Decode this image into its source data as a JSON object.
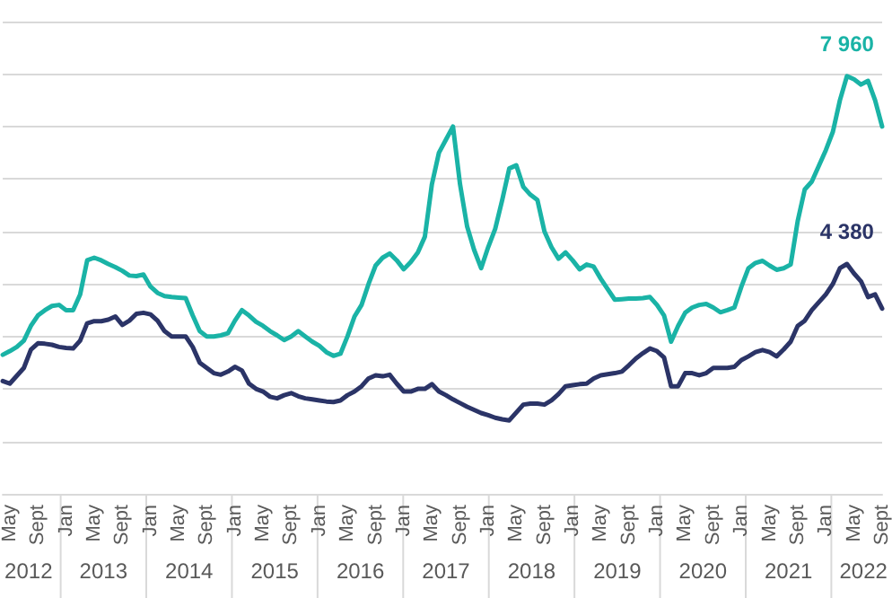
{
  "chart_data": {
    "type": "line",
    "categories": [
      null,
      "May",
      null,
      null,
      null,
      "Sept",
      null,
      null,
      null,
      "Jan",
      null,
      null,
      null,
      "May",
      null,
      null,
      null,
      "Sept",
      null,
      null,
      null,
      "Jan",
      null,
      null,
      null,
      "May",
      null,
      null,
      null,
      "Sept",
      null,
      null,
      null,
      "Jan",
      null,
      null,
      null,
      "May",
      null,
      null,
      null,
      "Sept",
      null,
      null,
      null,
      "Jan",
      null,
      null,
      null,
      "May",
      null,
      null,
      null,
      "Sept",
      null,
      null,
      null,
      "Jan",
      null,
      null,
      null,
      "May",
      null,
      null,
      null,
      "Sept",
      null,
      null,
      null,
      "Jan",
      null,
      null,
      null,
      "May",
      null,
      null,
      null,
      "Sept",
      null,
      null,
      null,
      "Jan",
      null,
      null,
      null,
      "May",
      null,
      null,
      null,
      "Sept",
      null,
      null,
      null,
      "Jan",
      null,
      null,
      null,
      "May",
      null,
      null,
      null,
      "Sept",
      null,
      null,
      null,
      "Jan",
      null,
      null,
      null,
      "May",
      null,
      null,
      null,
      "Sept",
      null,
      null,
      null,
      "Jan",
      null,
      null,
      null,
      "May",
      null,
      null,
      null,
      "Sept"
    ],
    "series": [
      {
        "color": "#1ab3a6",
        "values": [
          2650,
          2720,
          2800,
          2920,
          3200,
          3400,
          3500,
          3580,
          3600,
          3500,
          3500,
          3800,
          4450,
          4500,
          4450,
          4380,
          4320,
          4250,
          4160,
          4150,
          4180,
          3950,
          3830,
          3770,
          3750,
          3740,
          3730,
          3400,
          3100,
          3000,
          3000,
          3020,
          3060,
          3300,
          3500,
          3400,
          3280,
          3200,
          3100,
          3020,
          2930,
          3000,
          3100,
          3000,
          2900,
          2820,
          2700,
          2630,
          2670,
          3000,
          3380,
          3600,
          4000,
          4350,
          4500,
          4580,
          4450,
          4280,
          4420,
          4600,
          4900,
          5900,
          6500,
          6750,
          7000,
          5900,
          5100,
          4650,
          4300,
          4700,
          5050,
          5600,
          6200,
          6260,
          5850,
          5700,
          5600,
          5000,
          4700,
          4480,
          4600,
          4450,
          4280,
          4370,
          4330,
          4100,
          3900,
          3700,
          3710,
          3720,
          3720,
          3730,
          3750,
          3600,
          3400,
          2900,
          3200,
          3450,
          3550,
          3600,
          3620,
          3550,
          3460,
          3500,
          3550,
          3950,
          4300,
          4400,
          4440,
          4350,
          4270,
          4300,
          4370,
          5200,
          5800,
          5950,
          6250,
          6550,
          6900,
          7500,
          7960,
          7900,
          7800,
          7870,
          7500,
          7000
        ],
        "value_labels": [
          null,
          null,
          null,
          null,
          null,
          null,
          null,
          null,
          null,
          null,
          null,
          null,
          null,
          null,
          null,
          null,
          null,
          null,
          null,
          null,
          null,
          null,
          null,
          null,
          null,
          null,
          null,
          null,
          null,
          null,
          null,
          null,
          null,
          null,
          null,
          null,
          null,
          null,
          null,
          null,
          null,
          null,
          null,
          null,
          null,
          null,
          null,
          null,
          null,
          null,
          null,
          null,
          null,
          null,
          null,
          null,
          null,
          null,
          null,
          null,
          null,
          null,
          null,
          null,
          null,
          null,
          null,
          null,
          null,
          null,
          null,
          null,
          null,
          null,
          null,
          null,
          null,
          null,
          null,
          null,
          null,
          null,
          null,
          null,
          null,
          null,
          null,
          null,
          null,
          null,
          null,
          null,
          null,
          null,
          null,
          null,
          null,
          null,
          null,
          null,
          null,
          null,
          null,
          null,
          null,
          null,
          null,
          null,
          null,
          null,
          null,
          null,
          null,
          null,
          null,
          null,
          null,
          null,
          null,
          null,
          "7 960",
          null,
          null,
          null,
          null,
          null
        ]
      },
      {
        "color": "#2b3467",
        "values": [
          2150,
          2100,
          2250,
          2400,
          2750,
          2870,
          2860,
          2840,
          2800,
          2780,
          2770,
          2920,
          3250,
          3290,
          3290,
          3320,
          3380,
          3220,
          3300,
          3430,
          3450,
          3420,
          3300,
          3100,
          3000,
          3000,
          3000,
          2800,
          2500,
          2400,
          2300,
          2270,
          2330,
          2420,
          2350,
          2100,
          2000,
          1950,
          1850,
          1820,
          1880,
          1920,
          1860,
          1820,
          1800,
          1780,
          1760,
          1750,
          1780,
          1880,
          1950,
          2050,
          2200,
          2260,
          2240,
          2270,
          2100,
          1950,
          1950,
          2000,
          2000,
          2090,
          1950,
          1880,
          1800,
          1730,
          1660,
          1600,
          1540,
          1500,
          1450,
          1420,
          1400,
          1550,
          1700,
          1720,
          1720,
          1700,
          1780,
          1900,
          2050,
          2070,
          2090,
          2100,
          2200,
          2260,
          2280,
          2300,
          2330,
          2450,
          2580,
          2680,
          2770,
          2720,
          2600,
          2050,
          2050,
          2300,
          2300,
          2260,
          2300,
          2400,
          2400,
          2400,
          2420,
          2550,
          2620,
          2700,
          2740,
          2700,
          2620,
          2750,
          2900,
          3200,
          3300,
          3500,
          3650,
          3800,
          4000,
          4300,
          4380,
          4200,
          4050,
          3750,
          3800,
          3530
        ],
        "value_labels": [
          null,
          null,
          null,
          null,
          null,
          null,
          null,
          null,
          null,
          null,
          null,
          null,
          null,
          null,
          null,
          null,
          null,
          null,
          null,
          null,
          null,
          null,
          null,
          null,
          null,
          null,
          null,
          null,
          null,
          null,
          null,
          null,
          null,
          null,
          null,
          null,
          null,
          null,
          null,
          null,
          null,
          null,
          null,
          null,
          null,
          null,
          null,
          null,
          null,
          null,
          null,
          null,
          null,
          null,
          null,
          null,
          null,
          null,
          null,
          null,
          null,
          null,
          null,
          null,
          null,
          null,
          null,
          null,
          null,
          null,
          null,
          null,
          null,
          null,
          null,
          null,
          null,
          null,
          null,
          null,
          null,
          null,
          null,
          null,
          null,
          null,
          null,
          null,
          null,
          null,
          null,
          null,
          null,
          null,
          null,
          null,
          null,
          null,
          null,
          null,
          null,
          null,
          null,
          null,
          null,
          null,
          null,
          null,
          null,
          null,
          null,
          null,
          null,
          null,
          null,
          null,
          null,
          null,
          null,
          null,
          "4 380",
          null,
          null,
          null,
          null,
          null
        ]
      }
    ],
    "annotations": [
      "2012",
      "2013",
      "2014",
      "2015",
      "2016",
      "2017",
      "2018",
      "2019",
      "2020",
      "2021",
      "2022"
    ],
    "ylim": [
      0,
      9000
    ],
    "yticks": [
      {
        "value": 0,
        "label": null
      },
      {
        "value": 1000,
        "label": null
      },
      {
        "value": 2000,
        "label": null
      },
      {
        "value": 3000,
        "label": null
      },
      {
        "value": 4000,
        "label": null
      },
      {
        "value": 5000,
        "label": null
      },
      {
        "value": 6000,
        "label": null
      },
      {
        "value": 7000,
        "label": null
      },
      {
        "value": 8000,
        "label": null
      },
      {
        "value": 9000,
        "label": null
      }
    ],
    "tick_labels": "x",
    "grid": "y",
    "marker": "none",
    "line_style": "solid"
  }
}
